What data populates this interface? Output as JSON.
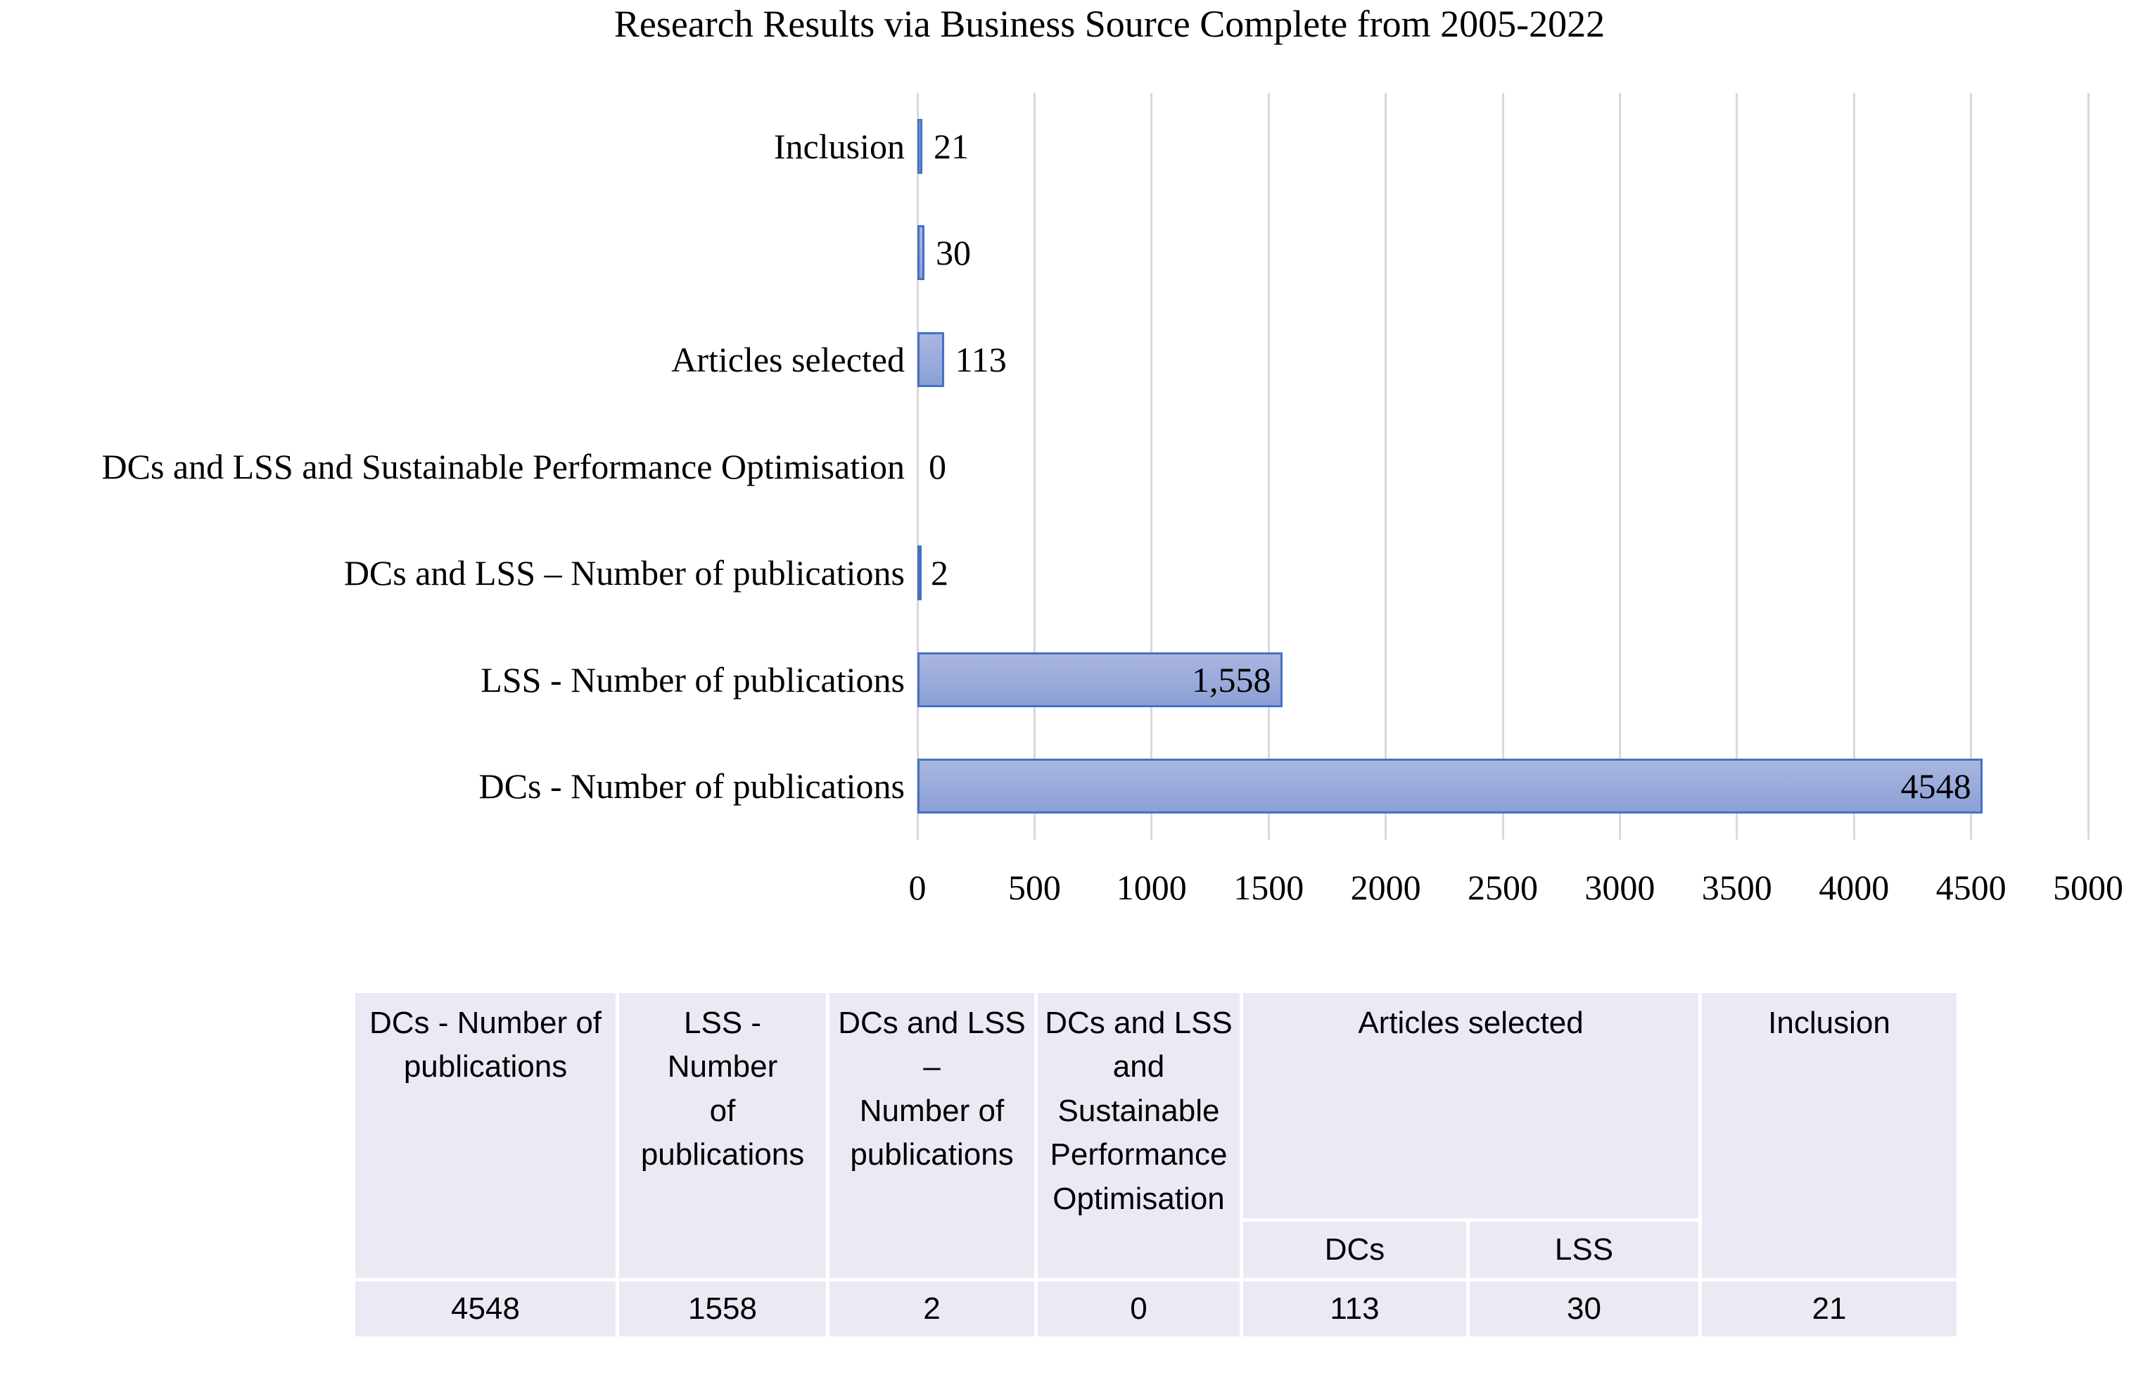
{
  "title": "Research Results via Business Source Complete from 2005-2022",
  "chart_data": {
    "type": "bar",
    "orientation": "horizontal",
    "title": "Research Results via Business Source Complete from 2005-2022",
    "categories": [
      "Inclusion",
      "",
      "Articles selected",
      "DCs and LSS and Sustainable Performance Optimisation",
      "DCs and LSS – Number of publications",
      "LSS - Number of publications",
      "DCs - Number of publications"
    ],
    "values": [
      21,
      30,
      113,
      0,
      2,
      1558,
      4548
    ],
    "value_labels": [
      "21",
      "30",
      "113",
      "0",
      "2",
      "1,558",
      "4548"
    ],
    "xlabel": "",
    "ylabel": "",
    "xlim": [
      0,
      5000
    ],
    "x_ticks": [
      0,
      500,
      1000,
      1500,
      2000,
      2500,
      3000,
      3500,
      4000,
      4500,
      5000
    ],
    "grid": true,
    "legend": "none",
    "style": {
      "bar_border": "#4472C4",
      "bar_fill_top": "#A9B6E0",
      "bar_fill_bottom": "#8CA0D6",
      "gridline_color": "#D9D9D9",
      "text_color": "#000000"
    }
  },
  "table": {
    "col_headers": [
      "DCs - Number of\npublications",
      "LSS - Number\nof publications",
      "DCs and LSS –\nNumber of\npublications",
      "DCs and LSS\nand\nSustainable\nPerformance\nOptimisation",
      "Articles selected",
      "Inclusion"
    ],
    "sub_headers": [
      "DCs",
      "LSS"
    ],
    "values": [
      "4548",
      "1558",
      "2",
      "0",
      "113",
      "30",
      "21"
    ],
    "cell_bg": "#E9EAF4"
  }
}
